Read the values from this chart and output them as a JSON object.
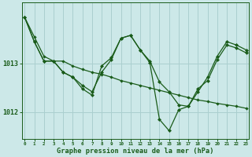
{
  "background_color": "#cce8e8",
  "grid_color": "#aacfcf",
  "line_color": "#1a5c1a",
  "title": "Graphe pression niveau de la mer (hPa)",
  "xlim": [
    -0.3,
    23.3
  ],
  "ylim": [
    1011.45,
    1014.25
  ],
  "yticks": [
    1012,
    1013
  ],
  "xticks": [
    0,
    1,
    2,
    3,
    4,
    5,
    6,
    7,
    8,
    9,
    10,
    11,
    12,
    13,
    14,
    15,
    16,
    17,
    18,
    19,
    20,
    21,
    22,
    23
  ],
  "series": [
    [
      1013.95,
      1013.55,
      1013.15,
      1013.05,
      1013.05,
      1012.95,
      1012.88,
      1012.82,
      1012.78,
      1012.72,
      1012.65,
      1012.6,
      1012.55,
      1012.5,
      1012.45,
      1012.4,
      1012.35,
      1012.3,
      1012.25,
      1012.22,
      1012.18,
      1012.15,
      1012.12,
      1012.08
    ],
    [
      1013.95,
      1013.45,
      1013.05,
      1013.05,
      1012.82,
      1012.72,
      1012.55,
      1012.42,
      1012.82,
      1013.08,
      1013.52,
      1013.58,
      1013.28,
      1013.05,
      1012.62,
      1012.42,
      1012.15,
      1012.12,
      1012.42,
      1012.72,
      1013.15,
      1013.45,
      1013.38,
      1013.28
    ],
    [
      1013.95,
      1013.45,
      1013.05,
      1013.05,
      1012.82,
      1012.72,
      1012.48,
      1012.35,
      1012.95,
      1013.12,
      1013.52,
      1013.58,
      1013.28,
      1013.02,
      1011.85,
      1011.62,
      1012.05,
      1012.12,
      1012.48,
      1012.65,
      1013.08,
      1013.38,
      1013.32,
      1013.22
    ]
  ]
}
